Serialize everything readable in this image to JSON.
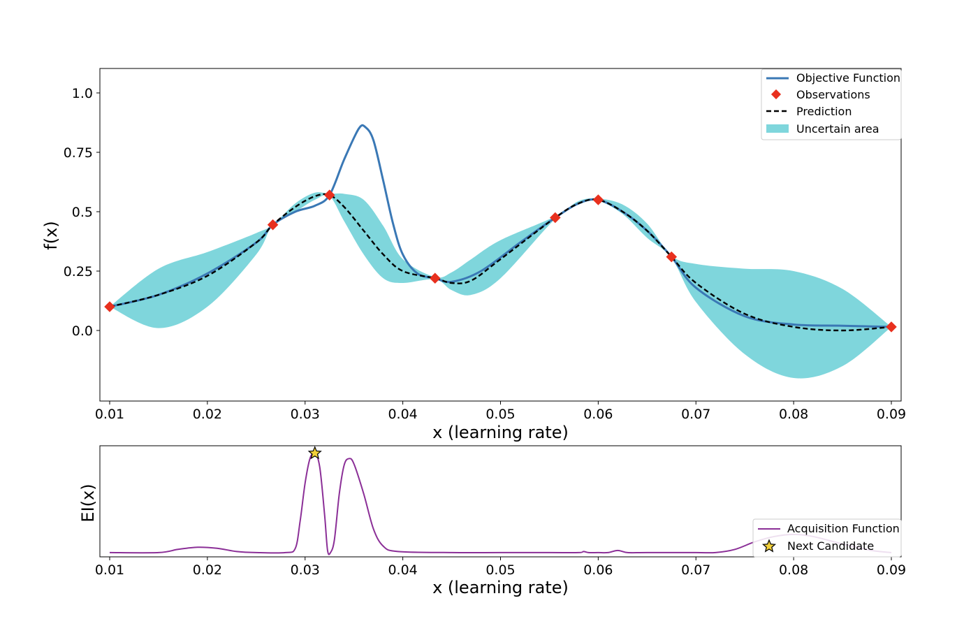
{
  "colors": {
    "objective": "#3a78b5",
    "observations": "#e8301e",
    "prediction": "#000000",
    "uncertain": "#7fd6dc",
    "acquisition": "#8b2f97",
    "candidate": "#f2d03a"
  },
  "chart_data": [
    {
      "type": "line",
      "id": "main",
      "xlabel": "x (learning rate)",
      "ylabel": "f(x)",
      "xlim": [
        0.01,
        0.09
      ],
      "ylim": [
        -0.3,
        1.1
      ],
      "xticks": [
        0.01,
        0.02,
        0.03,
        0.04,
        0.05,
        0.06,
        0.07,
        0.08,
        0.09
      ],
      "xtick_labels": [
        "0.01",
        "0.02",
        "0.03",
        "0.04",
        "0.05",
        "0.06",
        "0.07",
        "0.08",
        "0.09"
      ],
      "yticks": [
        0.0,
        0.25,
        0.5,
        0.75,
        1.0
      ],
      "ytick_labels": [
        "0.0",
        "0.25",
        "0.5",
        "0.75",
        "1.0"
      ],
      "legend_position": "top-right",
      "legend": [
        "Objective Function",
        "Observations",
        "Prediction",
        "Uncertain area"
      ],
      "objective_function": {
        "x": [
          0.01,
          0.015,
          0.02,
          0.025,
          0.0267,
          0.029,
          0.031,
          0.0325,
          0.034,
          0.0355,
          0.0362,
          0.037,
          0.038,
          0.039,
          0.04,
          0.0415,
          0.0433,
          0.045,
          0.048,
          0.052,
          0.0556,
          0.058,
          0.06,
          0.0625,
          0.065,
          0.0675,
          0.07,
          0.075,
          0.08,
          0.085,
          0.09
        ],
        "y": [
          0.1,
          0.15,
          0.24,
          0.37,
          0.445,
          0.5,
          0.525,
          0.57,
          0.72,
          0.85,
          0.855,
          0.8,
          0.63,
          0.45,
          0.32,
          0.24,
          0.22,
          0.205,
          0.25,
          0.37,
          0.475,
          0.535,
          0.55,
          0.5,
          0.42,
          0.31,
          0.18,
          0.06,
          0.025,
          0.02,
          0.015
        ]
      },
      "observations": {
        "x": [
          0.01,
          0.0267,
          0.0325,
          0.0433,
          0.0556,
          0.06,
          0.0675,
          0.09
        ],
        "y": [
          0.1,
          0.445,
          0.57,
          0.22,
          0.475,
          0.55,
          0.31,
          0.015
        ]
      },
      "prediction": {
        "x": [
          0.01,
          0.015,
          0.02,
          0.025,
          0.0267,
          0.029,
          0.031,
          0.0325,
          0.034,
          0.036,
          0.038,
          0.04,
          0.0433,
          0.045,
          0.047,
          0.05,
          0.0556,
          0.058,
          0.06,
          0.0625,
          0.065,
          0.0675,
          0.07,
          0.075,
          0.08,
          0.085,
          0.09
        ],
        "y": [
          0.1,
          0.15,
          0.23,
          0.37,
          0.445,
          0.52,
          0.565,
          0.57,
          0.52,
          0.42,
          0.32,
          0.25,
          0.22,
          0.2,
          0.21,
          0.3,
          0.475,
          0.535,
          0.55,
          0.5,
          0.42,
          0.31,
          0.2,
          0.07,
          0.015,
          0.0,
          0.015
        ]
      },
      "uncertain_area": {
        "x": [
          0.01,
          0.015,
          0.02,
          0.025,
          0.0267,
          0.029,
          0.031,
          0.0325,
          0.034,
          0.036,
          0.038,
          0.04,
          0.0433,
          0.045,
          0.047,
          0.05,
          0.0556,
          0.058,
          0.06,
          0.0625,
          0.065,
          0.0675,
          0.07,
          0.075,
          0.08,
          0.085,
          0.09
        ],
        "upper": [
          0.1,
          0.26,
          0.33,
          0.41,
          0.445,
          0.535,
          0.58,
          0.575,
          0.575,
          0.55,
          0.44,
          0.3,
          0.225,
          0.245,
          0.3,
          0.38,
          0.48,
          0.545,
          0.555,
          0.53,
          0.45,
          0.315,
          0.28,
          0.26,
          0.25,
          0.175,
          0.015
        ],
        "lower": [
          0.1,
          0.01,
          0.1,
          0.32,
          0.445,
          0.5,
          0.55,
          0.565,
          0.46,
          0.32,
          0.22,
          0.2,
          0.215,
          0.17,
          0.15,
          0.22,
          0.47,
          0.53,
          0.545,
          0.49,
          0.39,
          0.305,
          0.12,
          -0.1,
          -0.2,
          -0.15,
          0.015
        ]
      }
    },
    {
      "type": "line",
      "id": "acquisition",
      "xlabel": "x (learning rate)",
      "ylabel": "EI(x)",
      "xlim": [
        0.01,
        0.09
      ],
      "ylim": [
        -0.004,
        0.1
      ],
      "xticks": [
        0.01,
        0.02,
        0.03,
        0.04,
        0.05,
        0.06,
        0.07,
        0.08,
        0.09
      ],
      "xtick_labels": [
        "0.01",
        "0.02",
        "0.03",
        "0.04",
        "0.05",
        "0.06",
        "0.07",
        "0.08",
        "0.09"
      ],
      "legend_position": "lower-right",
      "legend": [
        "Acquisition Function",
        "Next Candidate"
      ],
      "acquisition_function": {
        "x": [
          0.01,
          0.015,
          0.017,
          0.019,
          0.021,
          0.023,
          0.025,
          0.028,
          0.029,
          0.0295,
          0.03,
          0.0305,
          0.031,
          0.0315,
          0.032,
          0.0323,
          0.0326,
          0.033,
          0.0335,
          0.034,
          0.0345,
          0.035,
          0.036,
          0.037,
          0.038,
          0.0395,
          0.045,
          0.05,
          0.055,
          0.058,
          0.0585,
          0.059,
          0.06,
          0.061,
          0.062,
          0.063,
          0.065,
          0.07,
          0.072,
          0.074,
          0.076,
          0.078,
          0.08,
          0.082,
          0.085,
          0.088,
          0.09
        ],
        "y": [
          0.0,
          0.0,
          0.003,
          0.005,
          0.004,
          0.001,
          0.0,
          0.0,
          0.004,
          0.03,
          0.065,
          0.088,
          0.093,
          0.08,
          0.035,
          0.002,
          0.0,
          0.012,
          0.055,
          0.082,
          0.088,
          0.083,
          0.055,
          0.022,
          0.006,
          0.001,
          0.0,
          0.0,
          0.0,
          0.0,
          0.001,
          0.0,
          0.0,
          0.0,
          0.002,
          0.0,
          0.0,
          0.0,
          0.0,
          0.003,
          0.01,
          0.015,
          0.017,
          0.015,
          0.008,
          0.002,
          0.0
        ]
      },
      "next_candidate": {
        "x": 0.031,
        "y": 0.093
      }
    }
  ]
}
